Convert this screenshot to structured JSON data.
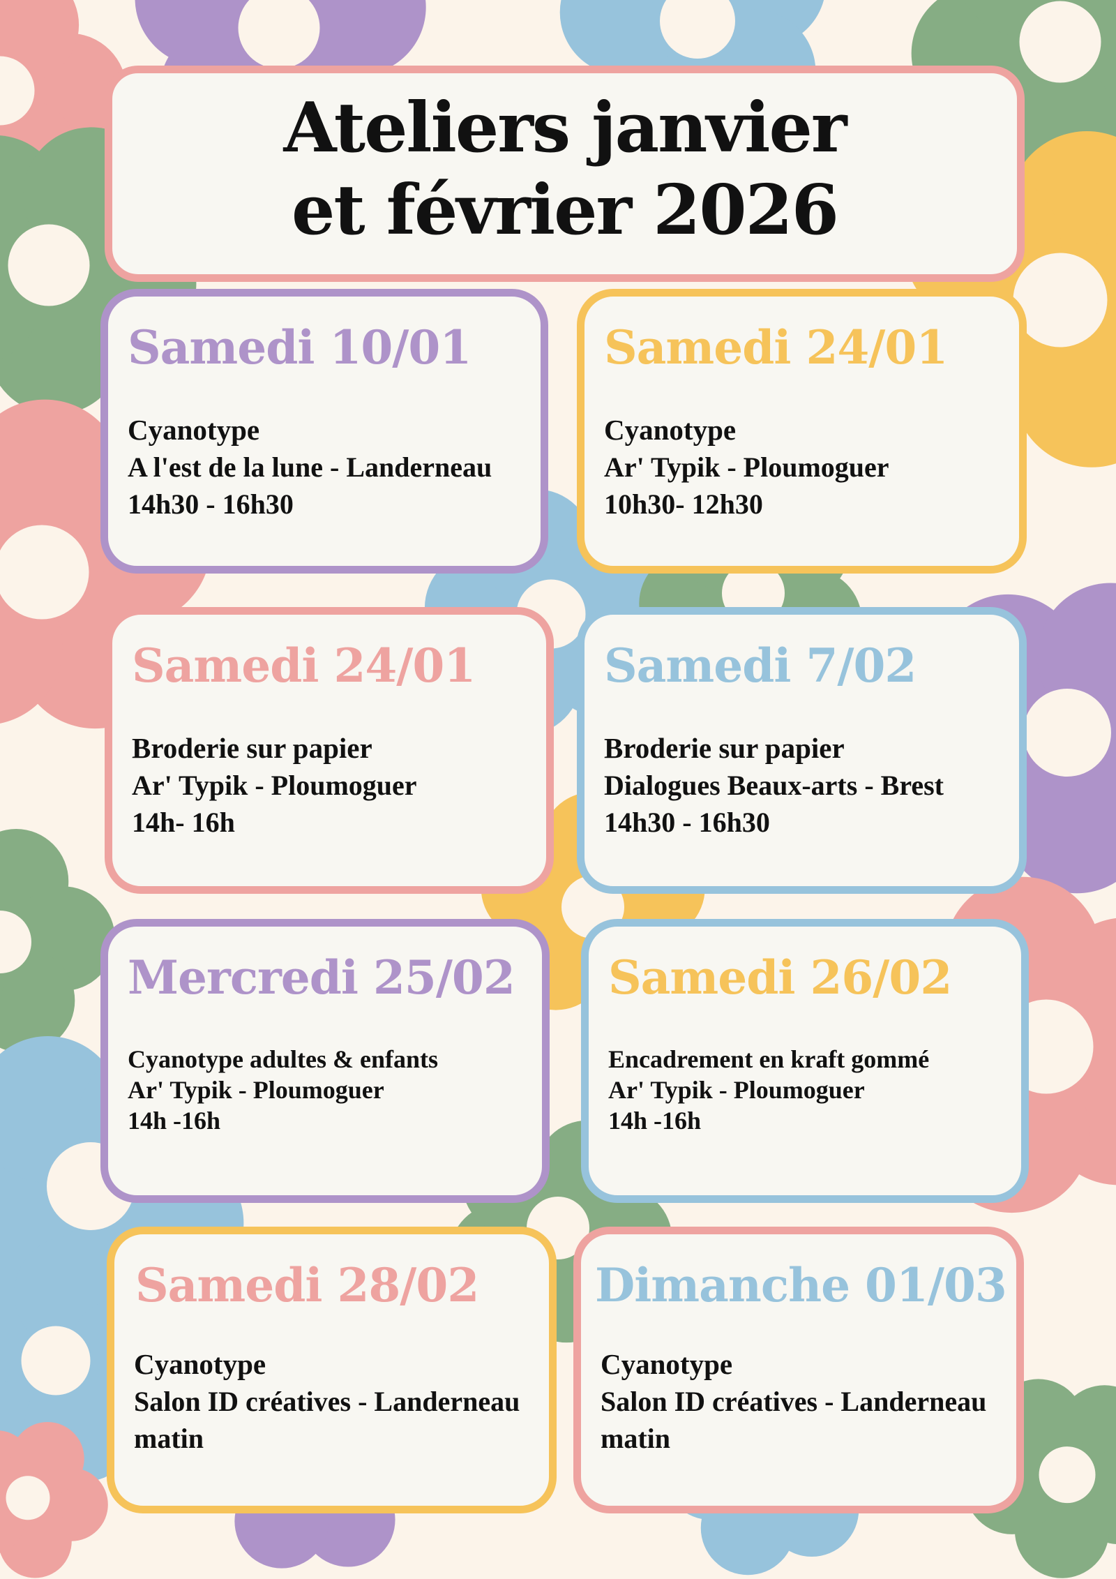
{
  "title": {
    "line1": "Ateliers janvier",
    "line2": "et février 2026"
  },
  "colors": {
    "background": "#fcf4ea",
    "card": "#f8f7f2",
    "purple": "#ae93c9",
    "yellow": "#f6c35a",
    "pink": "#eea3a0",
    "blue": "#97c3dc",
    "green": "#86ad84",
    "text": "#111111"
  },
  "events": [
    {
      "date": "Samedi 10/01",
      "activity": "Cyanotype",
      "place": "A l'est de la lune - Landerneau",
      "time": "14h30 - 16h30",
      "date_color": "#ae93c9",
      "border_color": "#ae93c9"
    },
    {
      "date": "Samedi 24/01",
      "activity": "Cyanotype",
      "place": "Ar' Typik - Ploumoguer",
      "time": "10h30- 12h30",
      "date_color": "#f6c35a",
      "border_color": "#f6c35a"
    },
    {
      "date": "Samedi 24/01",
      "activity": "Broderie sur papier",
      "place": "Ar' Typik - Ploumoguer",
      "time": "14h- 16h",
      "date_color": "#eea3a0",
      "border_color": "#eea3a0"
    },
    {
      "date": "Samedi 7/02",
      "activity": "Broderie sur papier",
      "place": "Dialogues Beaux-arts - Brest",
      "time": "14h30 - 16h30",
      "date_color": "#97c3dc",
      "border_color": "#97c3dc"
    },
    {
      "date": "Mercredi 25/02",
      "activity": "Cyanotype adultes & enfants",
      "place": "Ar' Typik - Ploumoguer",
      "time": "14h -16h",
      "date_color": "#ae93c9",
      "border_color": "#ae93c9"
    },
    {
      "date": "Samedi 26/02",
      "activity": "Encadrement en kraft gommé",
      "place": "Ar' Typik - Ploumoguer",
      "time": "14h -16h",
      "date_color": "#f6c35a",
      "border_color": "#97c3dc"
    },
    {
      "date": "Samedi 28/02",
      "activity": "Cyanotype",
      "place": "Salon ID créatives - Landerneau",
      "time": "matin",
      "date_color": "#eea3a0",
      "border_color": "#f6c35a"
    },
    {
      "date": "Dimanche 01/03",
      "activity": "Cyanotype",
      "place": "Salon ID créatives - Landerneau",
      "time": "matin",
      "date_color": "#97c3dc",
      "border_color": "#eea3a0"
    }
  ]
}
